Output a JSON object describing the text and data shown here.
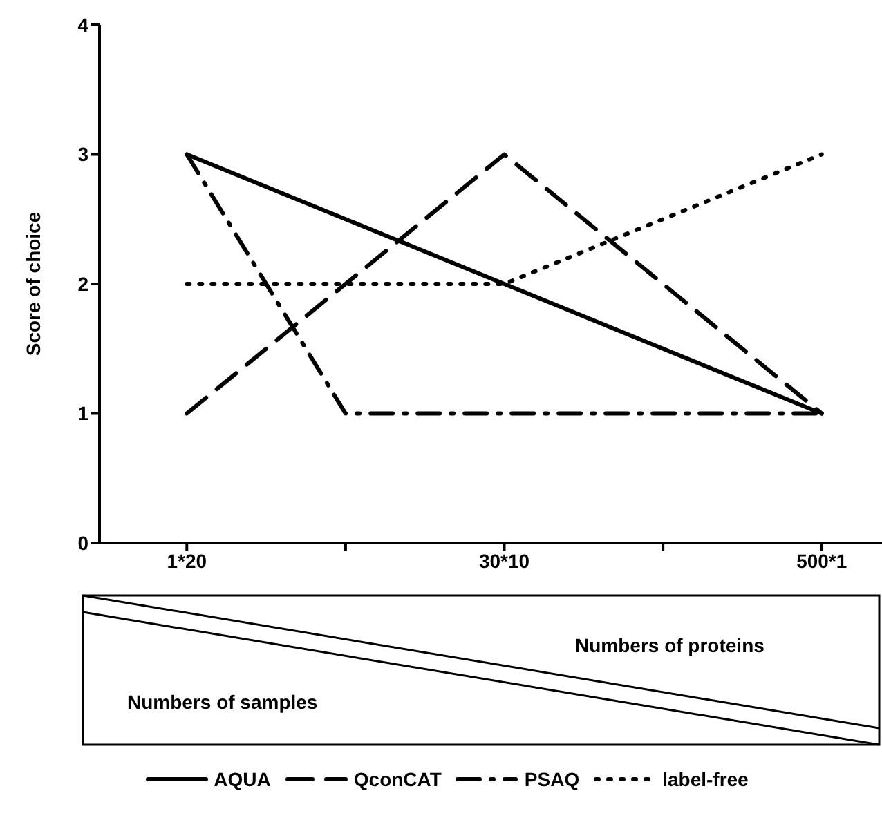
{
  "chart_data": {
    "type": "line",
    "ylabel": "Score of choice",
    "categories": [
      "1*20",
      null,
      "30*10",
      null,
      "500*1"
    ],
    "series": [
      {
        "name": "AQUA",
        "color": "#000000",
        "line_style": "solid",
        "values": [
          3,
          2.5,
          2,
          1.5,
          1
        ]
      },
      {
        "name": "QconCAT",
        "color": "#000000",
        "line_style": "dashed",
        "values": [
          1,
          2,
          3,
          2,
          1
        ]
      },
      {
        "name": "PSAQ",
        "color": "#000000",
        "line_style": "dashdot",
        "values": [
          3,
          1,
          1,
          1,
          1
        ]
      },
      {
        "name": "label-free",
        "color": "#000000",
        "line_style": "dotted",
        "values": [
          2,
          2,
          2,
          2.5,
          3
        ]
      }
    ],
    "ylim": [
      0,
      4
    ],
    "yticks": [
      0,
      1,
      2,
      3,
      4
    ],
    "grid": false,
    "marker": "none",
    "legend": "bottom",
    "annotations": [
      "Numbers of proteins",
      "Numbers of samples"
    ]
  }
}
